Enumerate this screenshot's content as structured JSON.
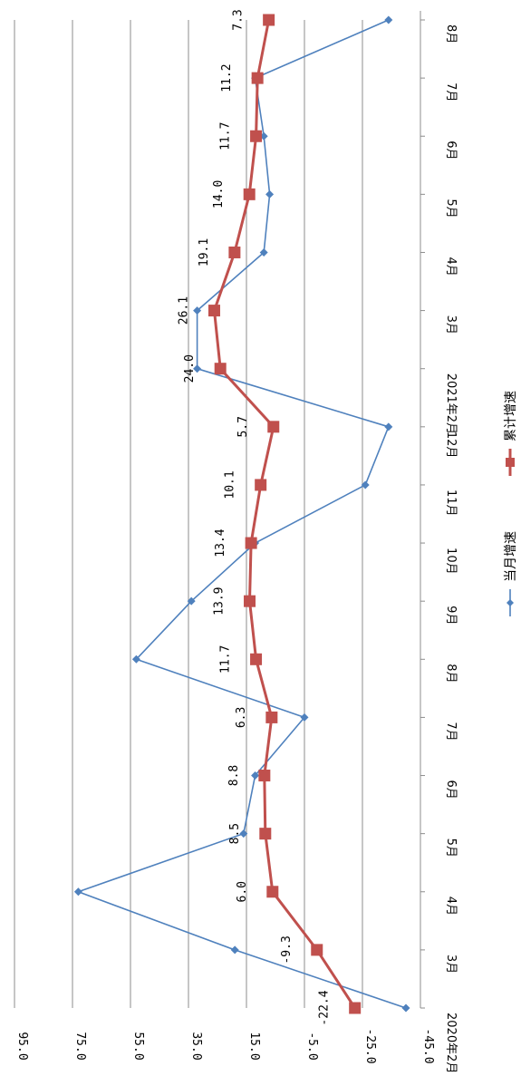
{
  "chart_data": {
    "type": "line",
    "orientation": "rotated-90-clockwise",
    "categories": [
      "2020年2月",
      "3月",
      "4月",
      "5月",
      "6月",
      "7月",
      "8月",
      "9月",
      "10月",
      "11月",
      "12月",
      "2021年2月",
      "3月",
      "4月",
      "5月",
      "6月",
      "7月",
      "8月"
    ],
    "ylim": [
      -45,
      95
    ],
    "yticks": [
      "-45.0",
      "-25.0",
      "-5.0",
      "15.0",
      "35.0",
      "55.0",
      "75.0",
      "95.0"
    ],
    "grid": true,
    "legend_position": "bottom",
    "series": [
      {
        "name": "当月增速",
        "color": "#4f81bd",
        "marker": "diamond",
        "values": [
          -40,
          19,
          73,
          16,
          12,
          -5,
          53,
          34,
          12,
          -26,
          -34,
          32,
          32,
          9,
          7,
          9,
          12,
          -34
        ]
      },
      {
        "name": "累计增速",
        "color": "#c0504d",
        "marker": "square",
        "values": [
          -22.4,
          -9.3,
          6.0,
          8.5,
          8.8,
          6.3,
          11.7,
          13.9,
          13.4,
          10.1,
          5.7,
          24.0,
          26.1,
          19.1,
          14.0,
          11.7,
          11.2,
          7.3
        ],
        "data_labels": [
          "-22.4",
          "-9.3",
          "6.0",
          "8.5",
          "8.8",
          "6.3",
          "11.7",
          "13.9",
          "13.4",
          "10.1",
          "5.7",
          "24.0",
          "26.1",
          "19.1",
          "14.0",
          "11.7",
          "11.2",
          "7.3"
        ]
      }
    ]
  }
}
